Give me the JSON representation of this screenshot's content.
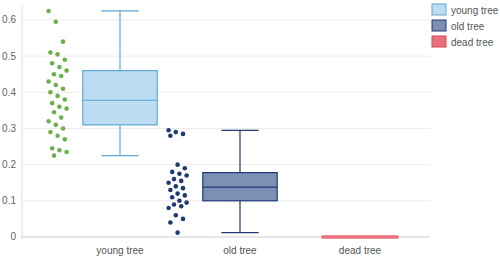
{
  "chart_data": {
    "type": "box",
    "categories": [
      "young tree",
      "old tree",
      "dead tree"
    ],
    "ylim": [
      -0.01,
      0.64
    ],
    "yticks": [
      0,
      0.1,
      0.2,
      0.3,
      0.4,
      0.5,
      0.6
    ],
    "grid": true,
    "legend": "top-right",
    "series": [
      {
        "name": "young tree",
        "color": "#bcdcf2",
        "min": 0.225,
        "q1": 0.31,
        "median": 0.378,
        "q3": 0.46,
        "max": 0.625,
        "points": [
          0.625,
          0.595,
          0.54,
          0.51,
          0.505,
          0.49,
          0.48,
          0.47,
          0.46,
          0.45,
          0.445,
          0.43,
          0.42,
          0.41,
          0.4,
          0.39,
          0.38,
          0.37,
          0.36,
          0.355,
          0.345,
          0.33,
          0.32,
          0.31,
          0.3,
          0.29,
          0.28,
          0.27,
          0.245,
          0.24,
          0.235,
          0.225
        ]
      },
      {
        "name": "old tree",
        "color": "#7d8fb3",
        "min": 0.012,
        "q1": 0.1,
        "median": 0.138,
        "q3": 0.178,
        "max": 0.295,
        "points": [
          0.295,
          0.29,
          0.285,
          0.28,
          0.2,
          0.19,
          0.18,
          0.175,
          0.17,
          0.16,
          0.155,
          0.15,
          0.14,
          0.135,
          0.13,
          0.12,
          0.115,
          0.11,
          0.1,
          0.095,
          0.09,
          0.085,
          0.08,
          0.06,
          0.05,
          0.04,
          0.012
        ]
      },
      {
        "name": "dead tree",
        "color": "#e8707a",
        "min": 0,
        "q1": 0,
        "median": 0,
        "q3": 0,
        "max": 0
      }
    ]
  }
}
